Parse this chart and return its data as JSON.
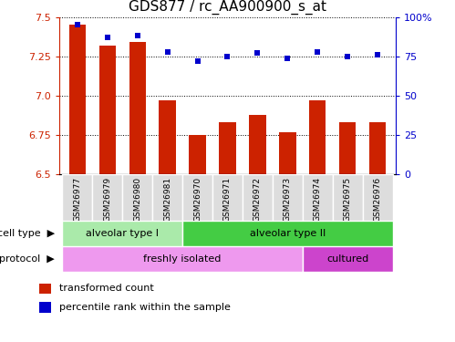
{
  "title": "GDS877 / rc_AA900900_s_at",
  "samples": [
    "GSM26977",
    "GSM26979",
    "GSM26980",
    "GSM26981",
    "GSM26970",
    "GSM26971",
    "GSM26972",
    "GSM26973",
    "GSM26974",
    "GSM26975",
    "GSM26976"
  ],
  "bar_values": [
    7.45,
    7.32,
    7.34,
    6.97,
    6.75,
    6.83,
    6.88,
    6.77,
    6.97,
    6.83,
    6.83
  ],
  "bar_base": 6.5,
  "percentile_values": [
    95,
    87,
    88,
    78,
    72,
    75,
    77,
    74,
    78,
    75,
    76
  ],
  "left_ylim": [
    6.5,
    7.5
  ],
  "left_yticks": [
    6.5,
    6.75,
    7.0,
    7.25,
    7.5
  ],
  "right_ylim": [
    0,
    100
  ],
  "right_yticks": [
    0,
    25,
    50,
    75,
    100
  ],
  "right_yticklabels": [
    "0",
    "25",
    "50",
    "75",
    "100%"
  ],
  "bar_color": "#cc2200",
  "dot_color": "#0000cc",
  "cell_type_groups": [
    {
      "label": "alveolar type I",
      "start": 0,
      "end": 3,
      "color": "#aaeaaa"
    },
    {
      "label": "alveolar type II",
      "start": 4,
      "end": 10,
      "color": "#44cc44"
    }
  ],
  "protocol_groups": [
    {
      "label": "freshly isolated",
      "start": 0,
      "end": 7,
      "color": "#ee99ee"
    },
    {
      "label": "cultured",
      "start": 8,
      "end": 10,
      "color": "#cc44cc"
    }
  ],
  "legend_items": [
    {
      "label": "transformed count",
      "color": "#cc2200"
    },
    {
      "label": "percentile rank within the sample",
      "color": "#0000cc"
    }
  ],
  "bar_width": 0.55,
  "xticklabel_fontsize": 7,
  "title_fontsize": 11
}
